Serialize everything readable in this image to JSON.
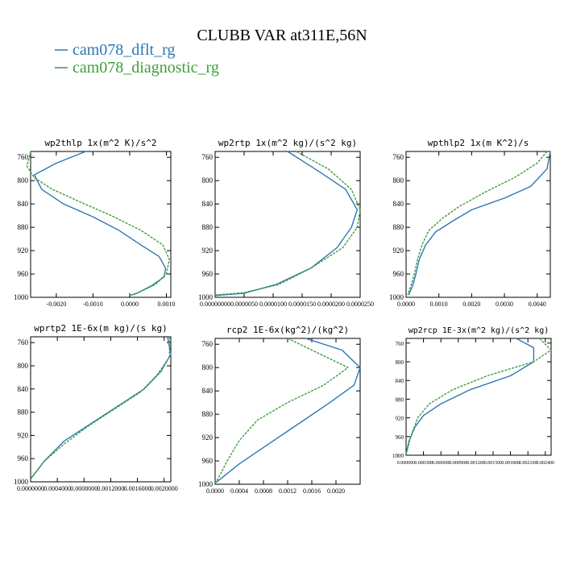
{
  "title": "CLUBB VAR at311E,56N",
  "legend": [
    {
      "name": "cam078_dflt_rg",
      "color": "#2b78b3"
    },
    {
      "name": "cam078_diagnostic_rg",
      "color": "#3c9e3c"
    }
  ],
  "chart_data": [
    {
      "type": "line",
      "title": "wp2thlp   1x(m^2 K)/s^2",
      "ylim": [
        1000,
        750
      ],
      "yticks": [
        "760",
        "800",
        "840",
        "880",
        "920",
        "960",
        "1000"
      ],
      "xlim": [
        -0.0027,
        0.00112
      ],
      "xticks": [
        "-0.0020",
        "-0.0010",
        "0.0000",
        "0.0010"
      ],
      "xtick_values": [
        -0.002,
        -0.001,
        0.0,
        0.001
      ],
      "series": [
        {
          "name": "cam078_dflt_rg",
          "x": [
            -0.0012,
            -0.002,
            -0.0026,
            -0.0024,
            -0.0018,
            -0.001,
            -0.0003,
            0.0003,
            0.0008,
            0.00098,
            0.00094,
            0.0006,
            0.0002,
            0.0
          ],
          "y": [
            750,
            770,
            790,
            815,
            840,
            862,
            885,
            910,
            930,
            950,
            965,
            980,
            993,
            997
          ]
        },
        {
          "name": "cam078_diagnostic_rg",
          "x": [
            -0.0027,
            -0.0028,
            -0.0026,
            -0.0021,
            -0.0013,
            -0.0005,
            0.0003,
            0.0009,
            0.00108,
            0.001,
            0.0007,
            0.0002,
            0.0
          ],
          "y": [
            750,
            775,
            795,
            815,
            838,
            860,
            885,
            910,
            935,
            960,
            978,
            993,
            997
          ]
        }
      ]
    },
    {
      "type": "line",
      "title": "wp2rtp   1x(m^2 kg)/(s^2 kg)",
      "ylim": [
        1000,
        750
      ],
      "yticks": [
        "760",
        "800",
        "840",
        "880",
        "920",
        "960",
        "1000"
      ],
      "xlim": [
        0.0,
        2.5e-05
      ],
      "xticks": [
        "0.00000000",
        "0.0000050",
        "0.0000100",
        "0.0000150",
        "0.0000200",
        "0.0000250"
      ],
      "xtick_values": [
        0.0,
        5e-06,
        1e-05,
        1.5e-05,
        2e-05,
        2.5e-05
      ],
      "series": [
        {
          "name": "cam078_dflt_rg",
          "x": [
            1.25e-05,
            1.8e-05,
            2.25e-05,
            2.45e-05,
            2.35e-05,
            2.1e-05,
            1.65e-05,
            1.05e-05,
            5e-06,
            0.0
          ],
          "y": [
            750,
            785,
            815,
            850,
            880,
            915,
            950,
            978,
            993,
            997
          ]
        },
        {
          "name": "cam078_diagnostic_rg",
          "x": [
            1.4e-05,
            1.95e-05,
            2.35e-05,
            2.5e-05,
            2.45e-05,
            2.2e-05,
            1.65e-05,
            1.1e-05,
            5e-06,
            0.0
          ],
          "y": [
            750,
            780,
            815,
            850,
            880,
            915,
            950,
            978,
            992,
            996
          ]
        }
      ]
    },
    {
      "type": "line",
      "title": "wpthlp2   1x(m K^2)/s",
      "ylim": [
        1000,
        750
      ],
      "yticks": [
        "760",
        "800",
        "840",
        "880",
        "920",
        "960",
        "1000"
      ],
      "xlim": [
        0.0,
        0.0044
      ],
      "xticks": [
        "0.0000",
        "0.0010",
        "0.0020",
        "0.0030",
        "0.0040"
      ],
      "xtick_values": [
        0.0,
        0.001,
        0.002,
        0.003,
        0.004
      ],
      "series": [
        {
          "name": "cam078_dflt_rg",
          "x": [
            0.0044,
            0.0043,
            0.0038,
            0.003,
            0.002,
            0.0014,
            0.0009,
            0.0006,
            0.0004,
            0.0003,
            0.0002,
            8e-05
          ],
          "y": [
            750,
            780,
            810,
            830,
            850,
            870,
            888,
            910,
            935,
            960,
            980,
            996
          ]
        },
        {
          "name": "cam078_diagnostic_rg",
          "x": [
            0.0043,
            0.004,
            0.0033,
            0.0024,
            0.0016,
            0.0011,
            0.0007,
            0.0005,
            0.00035,
            0.00025,
            0.00015,
            5e-05
          ],
          "y": [
            750,
            770,
            795,
            820,
            845,
            865,
            885,
            908,
            935,
            960,
            980,
            996
          ]
        }
      ]
    },
    {
      "type": "line",
      "title": "wprtp2   1E-6x(m kg)/(s kg)",
      "ylim": [
        1000,
        750
      ],
      "yticks": [
        "760",
        "800",
        "840",
        "880",
        "920",
        "960",
        "1000"
      ],
      "xlim": [
        0.0,
        0.0021
      ],
      "xticks": [
        "0.0000000",
        "0.0004000",
        "0.0008000",
        "0.0012000",
        "0.0016000",
        "0.0020000"
      ],
      "xtick_values": [
        0.0,
        0.0004,
        0.0008,
        0.0012,
        0.0016,
        0.002
      ],
      "series": [
        {
          "name": "cam078_dflt_rg",
          "x": [
            0.00205,
            0.0021,
            0.00195,
            0.0017,
            0.0013,
            0.0009,
            0.0005,
            0.0002,
            0.0
          ],
          "y": [
            750,
            780,
            810,
            840,
            870,
            900,
            930,
            965,
            995
          ]
        },
        {
          "name": "cam078_diagnostic_rg",
          "x": [
            0.00208,
            0.00208,
            0.0019,
            0.00165,
            0.00125,
            0.00085,
            0.0005,
            0.0002,
            0.0
          ],
          "y": [
            750,
            785,
            815,
            845,
            875,
            905,
            935,
            965,
            995
          ]
        }
      ]
    },
    {
      "type": "line",
      "title": "rcp2   1E-6x(kg^2)/(kg^2)",
      "ylim": [
        1000,
        750
      ],
      "yticks": [
        "760",
        "800",
        "840",
        "880",
        "920",
        "960",
        "1000"
      ],
      "xlim": [
        0.0,
        0.0024
      ],
      "xticks": [
        "0.0000",
        "0.0004",
        "0.0008",
        "0.0012",
        "0.0016",
        "0.0020"
      ],
      "xtick_values": [
        0.0,
        0.0004,
        0.0008,
        0.0012,
        0.0016,
        0.002
      ],
      "series": [
        {
          "name": "cam078_dflt_rg",
          "x": [
            0.0015,
            0.0021,
            0.0024,
            0.0023,
            0.0019,
            0.0014,
            0.0009,
            0.0004,
            0.0001,
            0.0
          ],
          "y": [
            750,
            770,
            800,
            830,
            860,
            895,
            930,
            965,
            990,
            998
          ]
        },
        {
          "name": "cam078_diagnostic_rg",
          "x": [
            0.0012,
            0.0017,
            0.0022,
            0.0018,
            0.0012,
            0.0007,
            0.0004,
            0.0002,
            5e-05,
            0.0
          ],
          "y": [
            750,
            775,
            800,
            830,
            860,
            890,
            925,
            960,
            990,
            998
          ]
        }
      ]
    },
    {
      "type": "line",
      "title": "wp2rcp   1E-3x(m^2 kg)/(s^2 kg)",
      "ylim": [
        1000,
        750
      ],
      "yticks": [
        "760",
        "800",
        "840",
        "880",
        "920",
        "960",
        "1000"
      ],
      "xlim": [
        0.0,
        0.0025
      ],
      "xticks": [
        "0.000000",
        "0.000300",
        "0.000600",
        "0.000900",
        "0.001200",
        "0.001500",
        "0.001800",
        "0.002100",
        "0.002400"
      ],
      "xtick_values": [
        0.0,
        0.0003,
        0.0006,
        0.0009,
        0.0012,
        0.0015,
        0.0018,
        0.0021,
        0.0024
      ],
      "series": [
        {
          "name": "cam078_dflt_rg",
          "x": [
            0.0019,
            0.0022,
            0.0022,
            0.0018,
            0.0011,
            0.0006,
            0.0003,
            0.00015,
            5e-05,
            0.0
          ],
          "y": [
            750,
            770,
            800,
            830,
            860,
            890,
            915,
            940,
            970,
            998
          ]
        },
        {
          "name": "cam078_diagnostic_rg",
          "x": [
            0.0023,
            0.0025,
            0.0022,
            0.0014,
            0.0008,
            0.0004,
            0.0002,
            8e-05,
            0.0
          ],
          "y": [
            750,
            775,
            800,
            830,
            860,
            890,
            920,
            960,
            998
          ]
        }
      ]
    }
  ]
}
